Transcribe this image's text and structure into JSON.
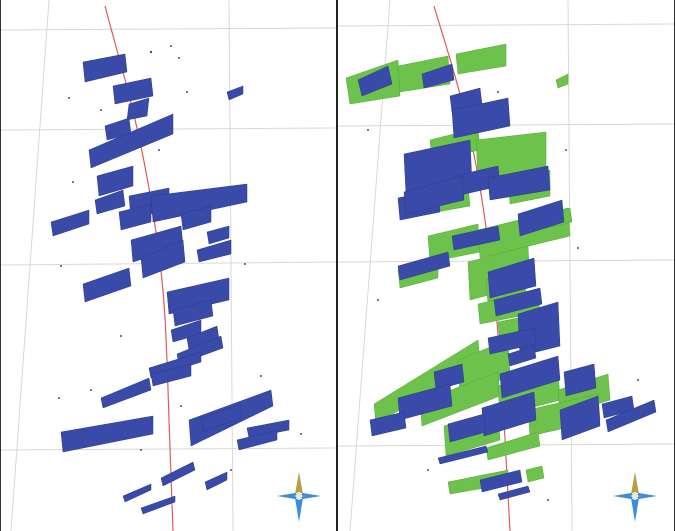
{
  "scene": {
    "panels": [
      {
        "id": "left",
        "description_icon": "north-arrow-icon",
        "fracture_color": "#3a4aa8"
      },
      {
        "id": "right",
        "description_icon": "north-arrow-icon",
        "fracture_colors": [
          "#3a4aa8",
          "#6cc24a"
        ]
      }
    ],
    "colors": {
      "blue_fracture": "#3a4aa8",
      "green_fracture": "#6cc24a",
      "well_trajectory": "#e05a5a",
      "grid": "#d8d8d8",
      "compass_gold": "#b8a040",
      "compass_blue": "#3a8fd8"
    }
  }
}
